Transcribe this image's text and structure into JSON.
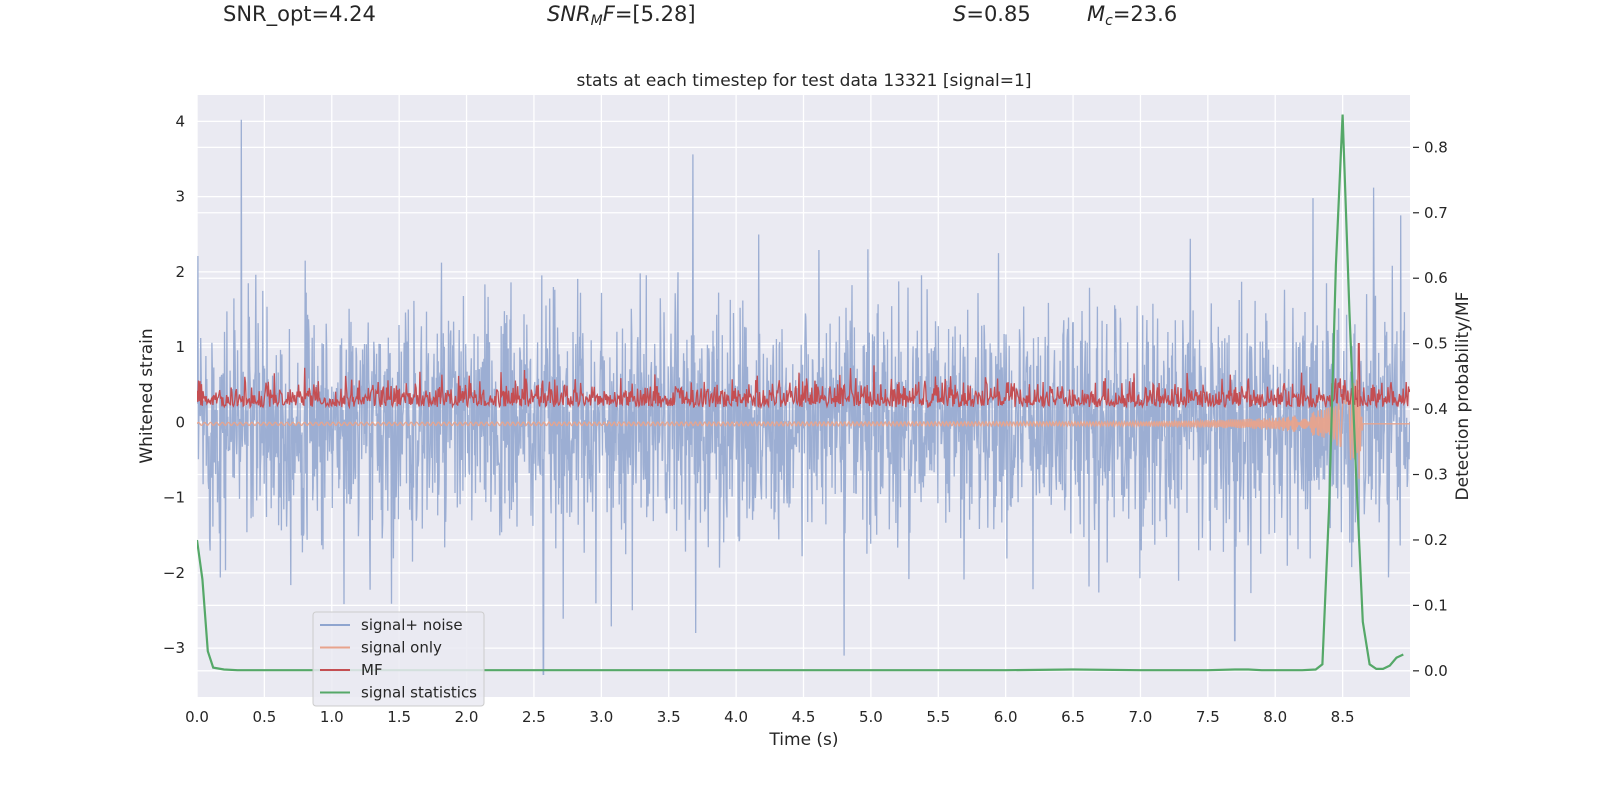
{
  "header": {
    "snr_opt": "SNR_opt=4.24",
    "snr_mf_sym": "SNR",
    "snr_mf_sub": "M",
    "snr_mf_sym2": "F",
    "snr_mf_val": "=[5.28]",
    "s_sym": "S",
    "s_val": "=0.85",
    "mc_sym": "M",
    "mc_sub": "c",
    "mc_val": "=23.6"
  },
  "chart_data": {
    "type": "line",
    "title": "stats at each timestep for test data 13321 [signal=1]",
    "xlabel": "Time (s)",
    "ylabel": "Whitened strain",
    "y2label": "Detection probability/MF",
    "xlim": [
      0,
      9.0
    ],
    "ylim": [
      -3.65,
      4.35
    ],
    "y2lim": [
      -0.04,
      0.88
    ],
    "xticks": [
      "0.0",
      "0.5",
      "1.0",
      "1.5",
      "2.0",
      "2.5",
      "3.0",
      "3.5",
      "4.0",
      "4.5",
      "5.0",
      "5.5",
      "6.0",
      "6.5",
      "7.0",
      "7.5",
      "8.0",
      "8.5"
    ],
    "xtick_values": [
      0,
      0.5,
      1,
      1.5,
      2,
      2.5,
      3,
      3.5,
      4,
      4.5,
      5,
      5.5,
      6,
      6.5,
      7,
      7.5,
      8,
      8.5
    ],
    "yticks": [
      "4",
      "3",
      "2",
      "1",
      "0",
      "−1",
      "−2",
      "−3"
    ],
    "ytick_values": [
      4,
      3,
      2,
      1,
      0,
      -1,
      -2,
      -3
    ],
    "y2ticks": [
      "0.8",
      "0.7",
      "0.6",
      "0.5",
      "0.4",
      "0.3",
      "0.2",
      "0.1",
      "0.0"
    ],
    "y2tick_values": [
      0.8,
      0.7,
      0.6,
      0.5,
      0.4,
      0.3,
      0.2,
      0.1,
      0.0
    ],
    "legend": {
      "position": "lower-left",
      "entries": [
        {
          "label": "signal+ noise",
          "color": "#8fa5cf"
        },
        {
          "label": "signal only",
          "color": "#e8a38c"
        },
        {
          "label": "MF",
          "color": "#c44e52"
        },
        {
          "label": "signal statistics",
          "color": "#55a868"
        }
      ]
    },
    "series": [
      {
        "name": "signal+ noise",
        "axis": "left",
        "color": "#98abd1",
        "description": "dense whitened strain time series, typical range -2 to 2, spikes up to 4.0 near t=0.33 and down to -3.3 near t=2.57",
        "notable_peaks": [
          [
            0.33,
            4.02
          ],
          [
            3.68,
            3.56
          ],
          [
            8.73,
            3.12
          ],
          [
            8.28,
            2.98
          ],
          [
            8.93,
            2.75
          ]
        ],
        "notable_troughs": [
          [
            2.57,
            -3.35
          ],
          [
            4.8,
            -3.1
          ],
          [
            3.7,
            -2.8
          ],
          [
            7.7,
            -2.9
          ]
        ]
      },
      {
        "name": "signal only",
        "axis": "left",
        "color": "#e8a38c",
        "description": "chirp signal near zero, growing amplitude before merger near t=8.62",
        "x": [
          0,
          7.0,
          7.5,
          8.0,
          8.2,
          8.4,
          8.5,
          8.55,
          8.6,
          8.62,
          8.65
        ],
        "amplitude": [
          0.02,
          0.03,
          0.05,
          0.08,
          0.12,
          0.22,
          0.35,
          0.45,
          0.6,
          0.85,
          0.0
        ]
      },
      {
        "name": "MF",
        "axis": "right",
        "color": "#c44e52",
        "description": "matched filter output around 0.40-0.45 on right axis with peak 0.50 near t=8.62",
        "peak": [
          8.62,
          0.5
        ]
      },
      {
        "name": "signal statistics",
        "axis": "right",
        "color": "#55a868",
        "x": [
          0.0,
          0.04,
          0.08,
          0.12,
          0.2,
          0.3,
          0.5,
          1.0,
          2.0,
          3.0,
          4.0,
          5.0,
          6.0,
          6.5,
          7.0,
          7.5,
          7.7,
          7.8,
          7.9,
          8.0,
          8.2,
          8.3,
          8.35,
          8.4,
          8.45,
          8.5,
          8.55,
          8.6,
          8.65,
          8.7,
          8.75,
          8.8,
          8.85,
          8.9,
          8.95
        ],
        "values": [
          0.2,
          0.14,
          0.03,
          0.005,
          0.002,
          0.001,
          0.001,
          0.001,
          0.001,
          0.001,
          0.001,
          0.001,
          0.001,
          0.002,
          0.001,
          0.001,
          0.002,
          0.002,
          0.001,
          0.001,
          0.001,
          0.002,
          0.01,
          0.25,
          0.62,
          0.85,
          0.55,
          0.3,
          0.075,
          0.01,
          0.003,
          0.003,
          0.008,
          0.02,
          0.025
        ]
      }
    ]
  }
}
